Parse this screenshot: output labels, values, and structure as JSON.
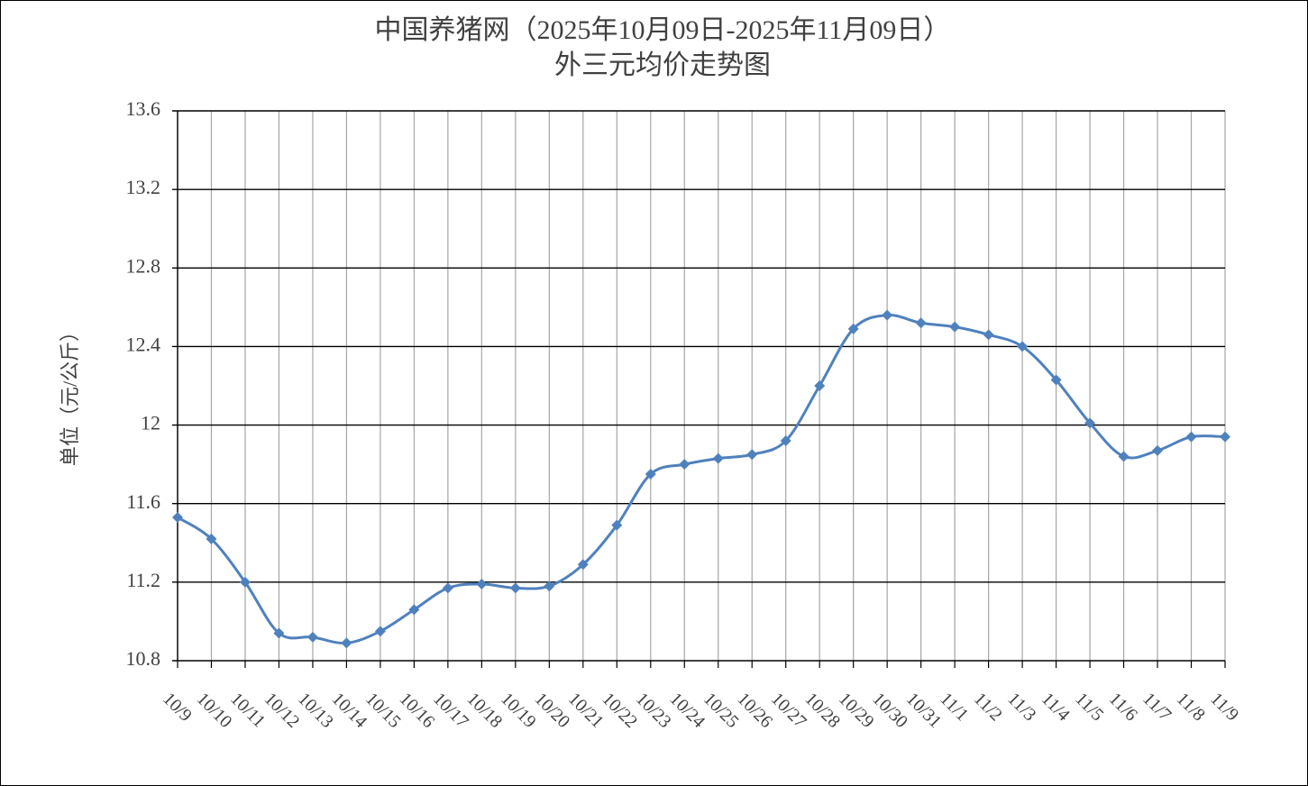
{
  "chart_data": {
    "type": "line",
    "title": "中国养猪网（2025年10月09日-2025年11月09日）",
    "subtitle": "外三元均价走势图",
    "ylabel": "单位（元/公斤）",
    "categories": [
      "10/9",
      "10/10",
      "10/11",
      "10/12",
      "10/13",
      "10/14",
      "10/15",
      "10/16",
      "10/17",
      "10/18",
      "10/19",
      "10/20",
      "10/21",
      "10/22",
      "10/23",
      "10/24",
      "10/25",
      "10/26",
      "10/27",
      "10/28",
      "10/29",
      "10/30",
      "10/31",
      "11/1",
      "11/2",
      "11/3",
      "11/4",
      "11/5",
      "11/6",
      "11/7",
      "11/8",
      "11/9"
    ],
    "values": [
      11.53,
      11.42,
      11.2,
      10.94,
      10.92,
      10.89,
      10.95,
      11.06,
      11.17,
      11.19,
      11.17,
      11.18,
      11.29,
      11.49,
      11.75,
      11.8,
      11.83,
      11.85,
      11.92,
      12.2,
      12.49,
      12.56,
      12.52,
      12.5,
      12.46,
      12.4,
      12.23,
      12.01,
      11.84,
      11.87,
      11.94,
      11.94
    ],
    "color": "#4f81bd",
    "ylim": [
      10.8,
      13.6
    ],
    "yticks": [
      10.8,
      11.2,
      11.6,
      12,
      12.4,
      12.8,
      13.2,
      13.6
    ],
    "grid": true
  }
}
